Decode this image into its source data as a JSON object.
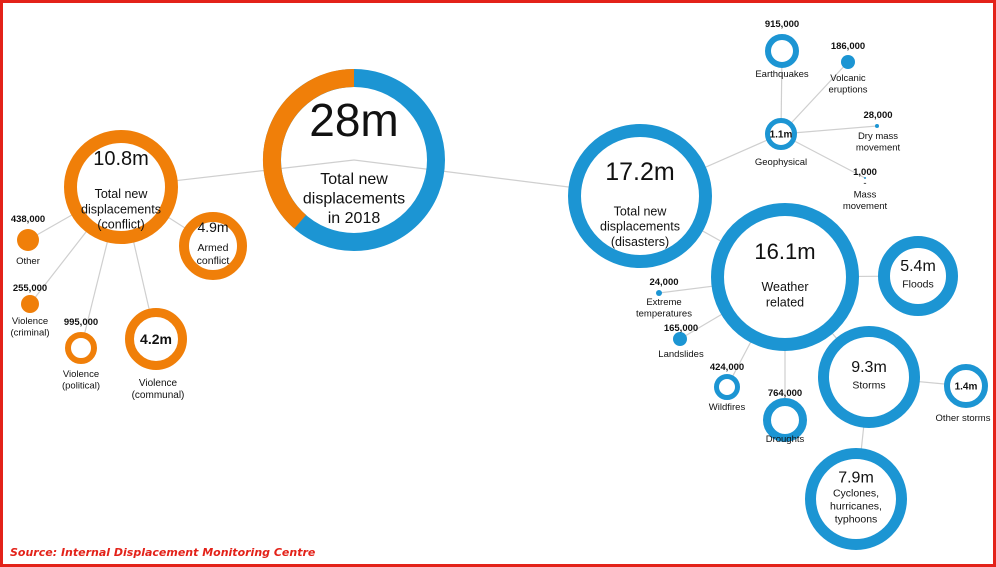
{
  "colors": {
    "conflict": "#f07f09",
    "disaster": "#1c95d3",
    "link": "#cfcfcf",
    "text": "#111111",
    "source": "#e32219"
  },
  "source_text": "Source: Internal Displacement Monitoring Centre",
  "nodes": {
    "total": {
      "value": "28m",
      "lines": [
        "Total new",
        "displacements",
        "in 2018"
      ]
    },
    "conflict": {
      "value": "10.8m",
      "lines": [
        "Total new",
        "displacements",
        "(conflict)"
      ]
    },
    "armed": {
      "value": "4.9m",
      "lines": [
        "Armed",
        "conflict"
      ]
    },
    "other_conflict": {
      "value": "438,000",
      "lines": [
        "Other"
      ]
    },
    "criminal": {
      "value": "255,000",
      "lines": [
        "Violence",
        "(criminal)"
      ]
    },
    "political": {
      "value": "995,000",
      "lines": [
        "Violence",
        "(political)"
      ]
    },
    "communal": {
      "value": "4.2m",
      "lines": [
        "Violence",
        "(communal)"
      ]
    },
    "disasters": {
      "value": "17.2m",
      "lines": [
        "Total new",
        "displacements",
        "(disasters)"
      ]
    },
    "geophysical": {
      "value": "1.1m",
      "lines": [
        "Geophysical"
      ]
    },
    "earthquakes": {
      "value": "915,000",
      "lines": [
        "Earthquakes"
      ]
    },
    "volcanic": {
      "value": "186,000",
      "lines": [
        "Volcanic",
        "eruptions"
      ]
    },
    "dry_mass": {
      "value": "28,000",
      "lines": [
        "Dry mass",
        "movement"
      ]
    },
    "mass": {
      "value": "1,000",
      "lines": [
        "-",
        "Mass",
        "movement"
      ]
    },
    "weather": {
      "value": "16.1m",
      "lines": [
        "Weather",
        "related"
      ]
    },
    "floods": {
      "value": "5.4m",
      "lines": [
        "Floods"
      ]
    },
    "storms": {
      "value": "9.3m",
      "lines": [
        "Storms"
      ]
    },
    "other_storms": {
      "value": "1.4m",
      "lines": [
        "Other storms"
      ]
    },
    "cyclones": {
      "value": "7.9m",
      "lines": [
        "Cyclones,",
        "hurricanes,",
        "typhoons"
      ]
    },
    "extreme": {
      "value": "24,000",
      "lines": [
        "Extreme",
        "temperatures"
      ]
    },
    "landslides": {
      "value": "165,000",
      "lines": [
        "Landslides"
      ]
    },
    "wildfires": {
      "value": "424,000",
      "lines": [
        "Wildfires"
      ]
    },
    "droughts": {
      "value": "764,000",
      "lines": [
        "Droughts"
      ]
    }
  },
  "total_conflict_share": 0.386
}
